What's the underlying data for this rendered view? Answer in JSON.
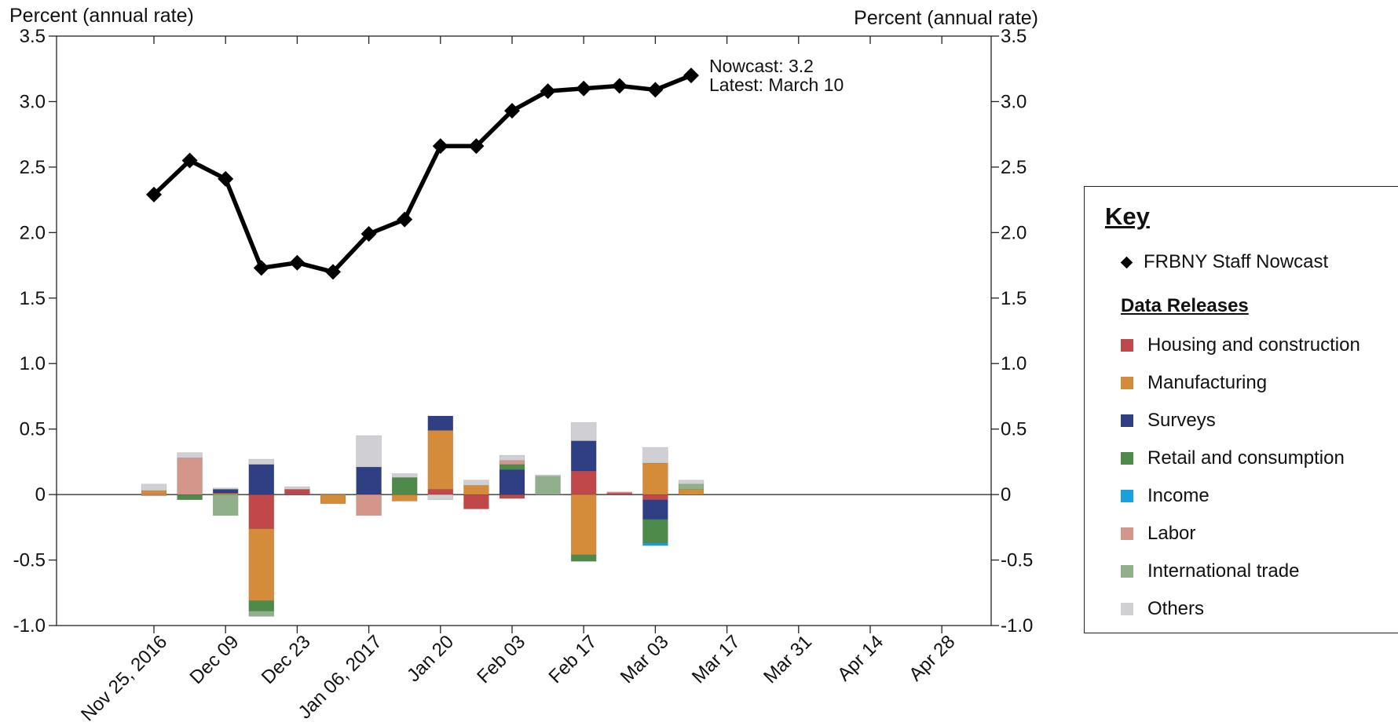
{
  "chart_data": {
    "type": "bar+line",
    "y_axis_label_left": "Percent (annual rate)",
    "y_axis_label_right": "Percent (annual rate)",
    "ylim": [
      -1.0,
      3.5
    ],
    "yticks": [
      "3.5",
      "3.0",
      "2.5",
      "2.0",
      "1.5",
      "1.0",
      "0.5",
      "0",
      "-0.5",
      "-1.0"
    ],
    "ytick_values": [
      3.5,
      3.0,
      2.5,
      2.0,
      1.5,
      1.0,
      0.5,
      0,
      -0.5,
      -1.0
    ],
    "x_tick_labels": [
      "Nov 25, 2016",
      "Dec 09",
      "Dec 23",
      "Jan 06, 2017",
      "Jan 20",
      "Feb 03",
      "Feb 17",
      "Mar 03",
      "Mar 17",
      "Mar 31",
      "Apr 14",
      "Apr 28"
    ],
    "weeks": [
      "Nov 25, 2016",
      "Dec 02",
      "Dec 09",
      "Dec 16",
      "Dec 23",
      "Dec 30",
      "Jan 06, 2017",
      "Jan 13",
      "Jan 20",
      "Jan 27",
      "Feb 03",
      "Feb 10",
      "Feb 17",
      "Feb 24",
      "Mar 03",
      "Mar 10",
      "Mar 17",
      "Mar 24",
      "Mar 31",
      "Apr 07",
      "Apr 14",
      "Apr 21",
      "Apr 28"
    ],
    "nowcast": {
      "name": "FRBNY Staff Nowcast",
      "values": [
        2.29,
        2.55,
        2.41,
        1.73,
        1.77,
        1.7,
        1.99,
        2.1,
        2.66,
        2.66,
        2.93,
        3.08,
        3.1,
        3.12,
        3.09,
        3.2
      ],
      "annotation": [
        "Nowcast:  3.2",
        "Latest: March 10"
      ]
    },
    "categories": [
      "Housing and construction",
      "Manufacturing",
      "Surveys",
      "Retail and consumption",
      "Income",
      "Labor",
      "International trade",
      "Others"
    ],
    "colors": [
      "#c0484a",
      "#d48c3a",
      "#2f3f83",
      "#4e8a4a",
      "#1aa0dc",
      "#d4968a",
      "#8fb088",
      "#cfcfd4"
    ],
    "contributions": [
      {
        "Manufacturing": 0.03,
        "Labor": -0.01,
        "Others": 0.05
      },
      {
        "Labor": 0.28,
        "Retail and consumption": -0.04,
        "Others": 0.04
      },
      {
        "Manufacturing": 0.01,
        "Surveys": 0.03,
        "International trade": -0.16,
        "Others": 0.01
      },
      {
        "Housing and construction": -0.26,
        "Manufacturing": -0.55,
        "Retail and consumption": -0.08,
        "International trade": -0.04,
        "Surveys": 0.23,
        "Others": 0.04
      },
      {
        "Housing and construction": 0.04,
        "Others": 0.02
      },
      {
        "Manufacturing": -0.07
      },
      {
        "Surveys": 0.21,
        "Labor": -0.16,
        "Others": 0.24
      },
      {
        "Retail and consumption": 0.13,
        "Manufacturing": -0.05,
        "Others": 0.03
      },
      {
        "Housing and construction": 0.04,
        "Manufacturing": 0.45,
        "Surveys": 0.11,
        "Others": -0.04
      },
      {
        "Manufacturing": 0.07,
        "Housing and construction": -0.11,
        "Others": 0.04
      },
      {
        "Surveys": 0.19,
        "Labor": 0.03,
        "Retail and consumption": 0.04,
        "Housing and construction": -0.03,
        "Others": 0.04
      },
      {
        "International trade": 0.14,
        "Others": 0.01
      },
      {
        "Housing and construction": 0.18,
        "Surveys": 0.23,
        "Manufacturing": -0.46,
        "Retail and consumption": -0.05,
        "Others": 0.14
      },
      {
        "Housing and construction": 0.01,
        "Labor": 0.01
      },
      {
        "Manufacturing": 0.24,
        "Housing and construction": -0.04,
        "Surveys": -0.15,
        "Income": -0.02,
        "Retail and consumption": -0.18,
        "Others": 0.12
      },
      {
        "Manufacturing": 0.04,
        "International trade": 0.04,
        "Others": 0.03
      }
    ]
  },
  "key": {
    "title": "Key",
    "nowcast_label": "FRBNY Staff Nowcast",
    "subtitle": "Data Releases"
  }
}
